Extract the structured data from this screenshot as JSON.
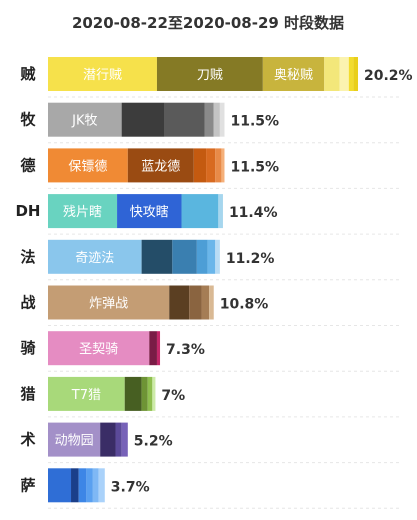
{
  "chart_data": {
    "type": "bar",
    "orientation": "horizontal",
    "stacked": true,
    "title": "2020-08-22至2020-08-29 时段数据",
    "xlabel": "",
    "ylabel": "",
    "grid": false,
    "legend": "none",
    "xlim": [
      0,
      20.2
    ],
    "rows": [
      {
        "category": "贼",
        "total_label": "20.2%",
        "segments": [
          {
            "name": "潜行贼",
            "value": 7.1,
            "color": "#f6e14b",
            "label_color": "#ffffff"
          },
          {
            "name": "刀贼",
            "value": 6.9,
            "color": "#857a25",
            "label_color": "#ffffff"
          },
          {
            "name": "奥秘贼",
            "value": 4.0,
            "color": "#c8b43d",
            "label_color": "#ffffff"
          },
          {
            "name": "",
            "value": 1.0,
            "color": "#f3e77a",
            "label_color": ""
          },
          {
            "name": "",
            "value": 0.6,
            "color": "#fbf3b0",
            "label_color": ""
          },
          {
            "name": "",
            "value": 0.3,
            "color": "#f2dc2e",
            "label_color": ""
          },
          {
            "name": "",
            "value": 0.3,
            "color": "#e9cf1a",
            "label_color": ""
          }
        ]
      },
      {
        "category": "牧",
        "total_label": "11.5%",
        "segments": [
          {
            "name": "JK牧",
            "value": 4.8,
            "color": "#a8a8a8",
            "label_color": "#ffffff"
          },
          {
            "name": "",
            "value": 2.8,
            "color": "#3c3c3c",
            "label_color": ""
          },
          {
            "name": "",
            "value": 2.6,
            "color": "#5a5a5a",
            "label_color": ""
          },
          {
            "name": "",
            "value": 0.6,
            "color": "#8a8a8a",
            "label_color": ""
          },
          {
            "name": "",
            "value": 0.4,
            "color": "#c4c4c4",
            "label_color": ""
          },
          {
            "name": "",
            "value": 0.3,
            "color": "#e0e0e0",
            "label_color": ""
          }
        ]
      },
      {
        "category": "德",
        "total_label": "11.5%",
        "segments": [
          {
            "name": "保镖德",
            "value": 5.2,
            "color": "#f08a34",
            "label_color": "#ffffff"
          },
          {
            "name": "蓝龙德",
            "value": 4.3,
            "color": "#9a4b12",
            "label_color": "#ffffff"
          },
          {
            "name": "",
            "value": 0.8,
            "color": "#c45a10",
            "label_color": ""
          },
          {
            "name": "",
            "value": 0.6,
            "color": "#d86a20",
            "label_color": ""
          },
          {
            "name": "",
            "value": 0.4,
            "color": "#e88a48",
            "label_color": ""
          },
          {
            "name": "",
            "value": 0.2,
            "color": "#f5b07a",
            "label_color": ""
          }
        ]
      },
      {
        "category": "DH",
        "total_label": "11.4%",
        "segments": [
          {
            "name": "残片瞎",
            "value": 4.5,
            "color": "#69d3c0",
            "label_color": "#ffffff"
          },
          {
            "name": "快攻瞎",
            "value": 4.2,
            "color": "#2f64d6",
            "label_color": "#ffffff"
          },
          {
            "name": "",
            "value": 2.4,
            "color": "#5ab6df",
            "label_color": ""
          },
          {
            "name": "",
            "value": 0.3,
            "color": "#a6d6ee",
            "label_color": ""
          }
        ]
      },
      {
        "category": "法",
        "total_label": "11.2%",
        "segments": [
          {
            "name": "奇迹法",
            "value": 6.1,
            "color": "#8ac6ec",
            "label_color": "#ffffff"
          },
          {
            "name": "",
            "value": 2.0,
            "color": "#244d68",
            "label_color": ""
          },
          {
            "name": "",
            "value": 1.6,
            "color": "#3a7fb0",
            "label_color": ""
          },
          {
            "name": "",
            "value": 0.7,
            "color": "#4d9ed6",
            "label_color": ""
          },
          {
            "name": "",
            "value": 0.5,
            "color": "#6ab6ea",
            "label_color": ""
          },
          {
            "name": "",
            "value": 0.3,
            "color": "#b8dcf5",
            "label_color": ""
          }
        ]
      },
      {
        "category": "战",
        "total_label": "10.8%",
        "segments": [
          {
            "name": "炸弹战",
            "value": 7.9,
            "color": "#c49d74",
            "label_color": "#ffffff"
          },
          {
            "name": "",
            "value": 1.3,
            "color": "#5b3f22",
            "label_color": ""
          },
          {
            "name": "",
            "value": 0.8,
            "color": "#8a6440",
            "label_color": ""
          },
          {
            "name": "",
            "value": 0.5,
            "color": "#a57d55",
            "label_color": ""
          },
          {
            "name": "",
            "value": 0.3,
            "color": "#d9b994",
            "label_color": ""
          }
        ]
      },
      {
        "category": "骑",
        "total_label": "7.3%",
        "segments": [
          {
            "name": "圣契骑",
            "value": 6.6,
            "color": "#e58cc2",
            "label_color": "#ffffff"
          },
          {
            "name": "",
            "value": 0.5,
            "color": "#7a1c46",
            "label_color": ""
          },
          {
            "name": "",
            "value": 0.2,
            "color": "#c4286a",
            "label_color": ""
          }
        ]
      },
      {
        "category": "猎",
        "total_label": "7%",
        "segments": [
          {
            "name": "T7猎",
            "value": 5.0,
            "color": "#a8d97a",
            "label_color": "#ffffff"
          },
          {
            "name": "",
            "value": 1.1,
            "color": "#475f22",
            "label_color": ""
          },
          {
            "name": "",
            "value": 0.4,
            "color": "#6e9435",
            "label_color": ""
          },
          {
            "name": "",
            "value": 0.3,
            "color": "#8fbf4f",
            "label_color": ""
          },
          {
            "name": "",
            "value": 0.2,
            "color": "#cdeba8",
            "label_color": ""
          }
        ]
      },
      {
        "category": "术",
        "total_label": "5.2%",
        "segments": [
          {
            "name": "动物园",
            "value": 3.4,
            "color": "#a390c8",
            "label_color": "#ffffff"
          },
          {
            "name": "",
            "value": 1.0,
            "color": "#3a2d66",
            "label_color": ""
          },
          {
            "name": "",
            "value": 0.4,
            "color": "#5b4a99",
            "label_color": ""
          },
          {
            "name": "",
            "value": 0.4,
            "color": "#7762b8",
            "label_color": ""
          }
        ]
      },
      {
        "category": "萨",
        "total_label": "3.7%",
        "segments": [
          {
            "name": "",
            "value": 1.5,
            "color": "#2f6ed6",
            "label_color": ""
          },
          {
            "name": "",
            "value": 0.5,
            "color": "#1a3f8a",
            "label_color": ""
          },
          {
            "name": "",
            "value": 0.5,
            "color": "#3d86e6",
            "label_color": ""
          },
          {
            "name": "",
            "value": 0.4,
            "color": "#5aa0f0",
            "label_color": ""
          },
          {
            "name": "",
            "value": 0.4,
            "color": "#7fb8f5",
            "label_color": ""
          },
          {
            "name": "",
            "value": 0.4,
            "color": "#aad2fa",
            "label_color": ""
          }
        ]
      }
    ]
  }
}
